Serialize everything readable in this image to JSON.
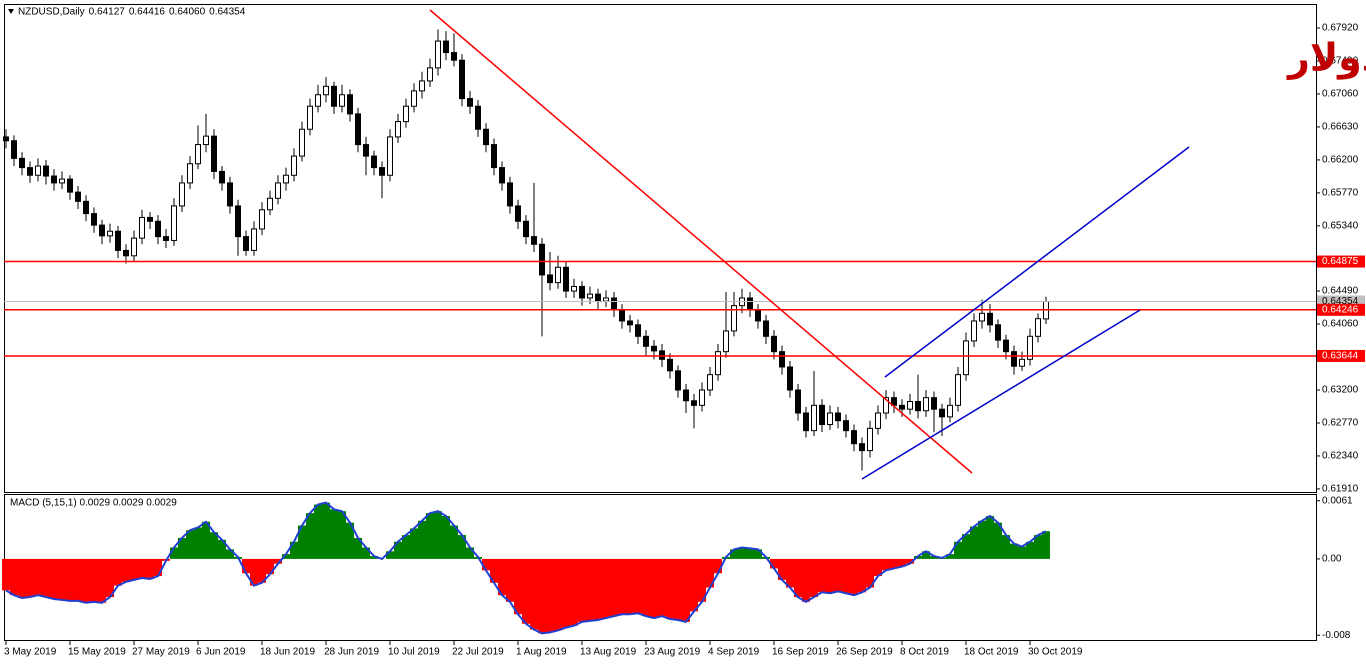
{
  "watermark": "النيوز دولار",
  "chart_data": [
    {
      "type": "candlestick",
      "title": "NZDUSD,Daily",
      "title_values": [
        "0.64127",
        "0.64416",
        "0.64060",
        "0.64354"
      ],
      "up_color": "#ffffff",
      "down_color": "#000000",
      "outline_color": "#000000",
      "ylim": [
        0.6187,
        0.6822
      ],
      "yticks": [
        {
          "value": 0.6792,
          "label": "0.67920"
        },
        {
          "value": 0.6749,
          "label": "0.67490"
        },
        {
          "value": 0.6706,
          "label": "0.67060"
        },
        {
          "value": 0.6663,
          "label": "0.66630"
        },
        {
          "value": 0.662,
          "label": "0.66200"
        },
        {
          "value": 0.6577,
          "label": "0.65770"
        },
        {
          "value": 0.6534,
          "label": "0.65340"
        },
        {
          "value": 0.6449,
          "label": "0.64490"
        },
        {
          "value": 0.6406,
          "label": "0.64060"
        },
        {
          "value": 0.632,
          "label": "0.63200"
        },
        {
          "value": 0.6277,
          "label": "0.62770"
        },
        {
          "value": 0.6234,
          "label": "0.62340"
        },
        {
          "value": 0.6191,
          "label": "0.61910"
        }
      ],
      "levels": [
        0.64875,
        0.64246,
        0.63644
      ],
      "level_color": "#ff0000",
      "current_price": 0.64354,
      "current_color": "#c0c0c0",
      "x_labels": [
        "3 May 2019",
        "15 May 2019",
        "27 May 2019",
        "6 Jun 2019",
        "18 Jun 2019",
        "28 Jun 2019",
        "10 Jul 2019",
        "22 Jul 2019",
        "1 Aug 2019",
        "13 Aug 2019",
        "23 Aug 2019",
        "4 Sep 2019",
        "16 Sep 2019",
        "26 Sep 2019",
        "8 Oct 2019",
        "18 Oct 2019",
        "30 Oct 2019"
      ],
      "candles": [
        [
          0.665,
          0.666,
          0.6635,
          0.6645
        ],
        [
          0.6645,
          0.6652,
          0.6612,
          0.6622
        ],
        [
          0.6622,
          0.663,
          0.66,
          0.661
        ],
        [
          0.661,
          0.6618,
          0.659,
          0.66
        ],
        [
          0.66,
          0.6622,
          0.6592,
          0.6612
        ],
        [
          0.6612,
          0.662,
          0.6588,
          0.6599
        ],
        [
          0.6599,
          0.6608,
          0.658,
          0.659
        ],
        [
          0.659,
          0.6605,
          0.6582,
          0.6595
        ],
        [
          0.6595,
          0.66,
          0.6568,
          0.6578
        ],
        [
          0.6578,
          0.6586,
          0.6556,
          0.6566
        ],
        [
          0.6566,
          0.6574,
          0.654,
          0.655
        ],
        [
          0.655,
          0.6558,
          0.6525,
          0.6535
        ],
        [
          0.6535,
          0.6542,
          0.651,
          0.6521
        ],
        [
          0.6521,
          0.6537,
          0.6512,
          0.6527
        ],
        [
          0.6527,
          0.6534,
          0.6492,
          0.6502
        ],
        [
          0.6502,
          0.651,
          0.6485,
          0.6495
        ],
        [
          0.6495,
          0.6528,
          0.6488,
          0.6518
        ],
        [
          0.6518,
          0.6555,
          0.651,
          0.6545
        ],
        [
          0.6545,
          0.6552,
          0.653,
          0.654
        ],
        [
          0.654,
          0.6548,
          0.651,
          0.652
        ],
        [
          0.652,
          0.653,
          0.6505,
          0.6515
        ],
        [
          0.6515,
          0.657,
          0.6508,
          0.656
        ],
        [
          0.656,
          0.66,
          0.6552,
          0.659
        ],
        [
          0.659,
          0.6625,
          0.6582,
          0.6615
        ],
        [
          0.6615,
          0.6665,
          0.6608,
          0.664
        ],
        [
          0.664,
          0.668,
          0.663,
          0.6651
        ],
        [
          0.6651,
          0.666,
          0.6595,
          0.6605
        ],
        [
          0.6605,
          0.6612,
          0.658,
          0.659
        ],
        [
          0.659,
          0.6598,
          0.655,
          0.656
        ],
        [
          0.656,
          0.6568,
          0.6495,
          0.652
        ],
        [
          0.652,
          0.6528,
          0.6495,
          0.6502
        ],
        [
          0.6502,
          0.654,
          0.6495,
          0.653
        ],
        [
          0.653,
          0.6565,
          0.6522,
          0.6555
        ],
        [
          0.6555,
          0.658,
          0.6548,
          0.657
        ],
        [
          0.657,
          0.66,
          0.6562,
          0.659
        ],
        [
          0.659,
          0.661,
          0.658,
          0.66
        ],
        [
          0.66,
          0.6635,
          0.6592,
          0.6625
        ],
        [
          0.6625,
          0.667,
          0.6618,
          0.666
        ],
        [
          0.666,
          0.67,
          0.6652,
          0.669
        ],
        [
          0.669,
          0.6718,
          0.6682,
          0.6705
        ],
        [
          0.6705,
          0.6728,
          0.6695,
          0.6716
        ],
        [
          0.6716,
          0.6722,
          0.668,
          0.669
        ],
        [
          0.669,
          0.6718,
          0.6682,
          0.6705
        ],
        [
          0.6705,
          0.6712,
          0.667,
          0.668
        ],
        [
          0.668,
          0.6688,
          0.663,
          0.664
        ],
        [
          0.664,
          0.665,
          0.66,
          0.6625
        ],
        [
          0.6625,
          0.6632,
          0.66,
          0.661
        ],
        [
          0.661,
          0.6618,
          0.657,
          0.66
        ],
        [
          0.66,
          0.666,
          0.6592,
          0.665
        ],
        [
          0.665,
          0.668,
          0.6642,
          0.667
        ],
        [
          0.667,
          0.67,
          0.6662,
          0.669
        ],
        [
          0.669,
          0.672,
          0.6682,
          0.671
        ],
        [
          0.671,
          0.6735,
          0.67,
          0.6723
        ],
        [
          0.6723,
          0.6752,
          0.6715,
          0.674
        ],
        [
          0.674,
          0.679,
          0.673,
          0.6775
        ],
        [
          0.6775,
          0.6788,
          0.675,
          0.676
        ],
        [
          0.676,
          0.6785,
          0.6742,
          0.675
        ],
        [
          0.675,
          0.6758,
          0.669,
          0.67
        ],
        [
          0.67,
          0.671,
          0.668,
          0.669
        ],
        [
          0.669,
          0.6698,
          0.665,
          0.666
        ],
        [
          0.666,
          0.6668,
          0.663,
          0.664
        ],
        [
          0.664,
          0.6648,
          0.66,
          0.661
        ],
        [
          0.661,
          0.6618,
          0.658,
          0.659
        ],
        [
          0.659,
          0.6598,
          0.655,
          0.656
        ],
        [
          0.656,
          0.6568,
          0.653,
          0.654
        ],
        [
          0.654,
          0.6548,
          0.651,
          0.652
        ],
        [
          0.652,
          0.659,
          0.65,
          0.651
        ],
        [
          0.651,
          0.6518,
          0.639,
          0.647
        ],
        [
          0.647,
          0.65,
          0.645,
          0.646
        ],
        [
          0.646,
          0.6495,
          0.6452,
          0.648
        ],
        [
          0.648,
          0.6488,
          0.644,
          0.6449
        ],
        [
          0.6449,
          0.6465,
          0.644,
          0.6455
        ],
        [
          0.6455,
          0.6462,
          0.643,
          0.644
        ],
        [
          0.644,
          0.6455,
          0.6432,
          0.6445
        ],
        [
          0.6445,
          0.6452,
          0.6425,
          0.6436
        ],
        [
          0.6436,
          0.645,
          0.6428,
          0.644
        ],
        [
          0.644,
          0.6448,
          0.6415,
          0.6425
        ],
        [
          0.6425,
          0.6432,
          0.64,
          0.641
        ],
        [
          0.641,
          0.6418,
          0.6395,
          0.6405
        ],
        [
          0.6405,
          0.6412,
          0.638,
          0.639
        ],
        [
          0.639,
          0.6398,
          0.6365,
          0.6377
        ],
        [
          0.6377,
          0.6385,
          0.636,
          0.6371
        ],
        [
          0.6371,
          0.638,
          0.635,
          0.636
        ],
        [
          0.636,
          0.6368,
          0.6335,
          0.6345
        ],
        [
          0.6345,
          0.6352,
          0.631,
          0.632
        ],
        [
          0.632,
          0.6328,
          0.629,
          0.6306
        ],
        [
          0.6306,
          0.6315,
          0.627,
          0.63
        ],
        [
          0.63,
          0.633,
          0.6292,
          0.632
        ],
        [
          0.632,
          0.635,
          0.6312,
          0.634
        ],
        [
          0.634,
          0.638,
          0.6332,
          0.637
        ],
        [
          0.637,
          0.6448,
          0.6362,
          0.6397
        ],
        [
          0.6397,
          0.6448,
          0.639,
          0.643
        ],
        [
          0.643,
          0.6452,
          0.642,
          0.644
        ],
        [
          0.644,
          0.6448,
          0.6415,
          0.6425
        ],
        [
          0.6425,
          0.6432,
          0.64,
          0.641
        ],
        [
          0.641,
          0.6418,
          0.638,
          0.639
        ],
        [
          0.639,
          0.6398,
          0.636,
          0.637
        ],
        [
          0.637,
          0.6378,
          0.634,
          0.635
        ],
        [
          0.635,
          0.6358,
          0.631,
          0.632
        ],
        [
          0.632,
          0.6328,
          0.628,
          0.629
        ],
        [
          0.629,
          0.6298,
          0.6258,
          0.6267
        ],
        [
          0.6267,
          0.6345,
          0.626,
          0.63
        ],
        [
          0.63,
          0.6308,
          0.6265,
          0.6275
        ],
        [
          0.6275,
          0.63,
          0.6268,
          0.629
        ],
        [
          0.629,
          0.6298,
          0.627,
          0.628
        ],
        [
          0.628,
          0.6288,
          0.6258,
          0.6267
        ],
        [
          0.6267,
          0.6275,
          0.624,
          0.625
        ],
        [
          0.625,
          0.6258,
          0.6215,
          0.6241
        ],
        [
          0.6241,
          0.628,
          0.6232,
          0.627
        ],
        [
          0.627,
          0.63,
          0.6262,
          0.629
        ],
        [
          0.629,
          0.632,
          0.6282,
          0.631
        ],
        [
          0.631,
          0.6318,
          0.629,
          0.63
        ],
        [
          0.63,
          0.6308,
          0.6285,
          0.6295
        ],
        [
          0.6295,
          0.6315,
          0.6288,
          0.6305
        ],
        [
          0.6305,
          0.634,
          0.6283,
          0.6293
        ],
        [
          0.6293,
          0.632,
          0.6285,
          0.631
        ],
        [
          0.631,
          0.6318,
          0.6265,
          0.6295
        ],
        [
          0.6295,
          0.6302,
          0.626,
          0.6285
        ],
        [
          0.6285,
          0.631,
          0.6278,
          0.63
        ],
        [
          0.63,
          0.635,
          0.6292,
          0.634
        ],
        [
          0.634,
          0.6395,
          0.6332,
          0.6384
        ],
        [
          0.6384,
          0.642,
          0.6376,
          0.641
        ],
        [
          0.641,
          0.6438,
          0.64,
          0.642
        ],
        [
          0.642,
          0.6432,
          0.6395,
          0.6405
        ],
        [
          0.6405,
          0.6412,
          0.6375,
          0.6385
        ],
        [
          0.6385,
          0.6392,
          0.636,
          0.637
        ],
        [
          0.637,
          0.6378,
          0.634,
          0.6351
        ],
        [
          0.6351,
          0.637,
          0.6345,
          0.636
        ],
        [
          0.636,
          0.64,
          0.6352,
          0.639
        ],
        [
          0.639,
          0.642,
          0.6382,
          0.6413
        ],
        [
          0.64127,
          0.64416,
          0.6406,
          0.64354
        ]
      ]
    },
    {
      "type": "histogram",
      "title": "MACD (5,15,1) 0.0029 0.0029 0.0029",
      "positive_color": "#008000",
      "negative_color": "#ff0000",
      "line_color": "#1f3fd0",
      "ylim": [
        -0.0085,
        0.0067
      ],
      "yticks": [
        0.0061,
        {
          "value": 0,
          "label": "0.00"
        },
        -0.008
      ],
      "values": [
        -0.0033,
        -0.0038,
        -0.0041,
        -0.004,
        -0.0038,
        -0.004,
        -0.0042,
        -0.0043,
        -0.0044,
        -0.0044,
        -0.0046,
        -0.0045,
        -0.0046,
        -0.004,
        -0.0028,
        -0.0024,
        -0.0022,
        -0.002,
        -0.0021,
        -0.0018,
        -0.0002,
        0.0012,
        0.0022,
        0.003,
        0.0033,
        0.0039,
        0.0028,
        0.002,
        0.001,
        0.0002,
        -0.0015,
        -0.0028,
        -0.0025,
        -0.0016,
        -0.0005,
        0.0005,
        0.0018,
        0.0035,
        0.0048,
        0.0057,
        0.0059,
        0.0052,
        0.005,
        0.0038,
        0.0022,
        0.0012,
        0.0003,
        0.0,
        0.0008,
        0.0018,
        0.0025,
        0.0032,
        0.004,
        0.0048,
        0.005,
        0.0045,
        0.0035,
        0.0025,
        0.0012,
        0.0002,
        -0.0012,
        -0.0025,
        -0.0038,
        -0.0045,
        -0.0058,
        -0.0068,
        -0.0074,
        -0.0078,
        -0.0077,
        -0.0075,
        -0.0072,
        -0.007,
        -0.0066,
        -0.0065,
        -0.0064,
        -0.0062,
        -0.006,
        -0.0058,
        -0.0058,
        -0.0057,
        -0.006,
        -0.0062,
        -0.006,
        -0.0063,
        -0.0064,
        -0.0066,
        -0.0055,
        -0.0045,
        -0.003,
        -0.0015,
        0.0002,
        0.001,
        0.0012,
        0.0011,
        0.001,
        0.0002,
        -0.001,
        -0.0022,
        -0.003,
        -0.004,
        -0.0045,
        -0.004,
        -0.0035,
        -0.0036,
        -0.0034,
        -0.0036,
        -0.0038,
        -0.0035,
        -0.003,
        -0.0018,
        -0.0012,
        -0.001,
        -0.0008,
        -0.0005,
        0.0003,
        0.0008,
        0.0003,
        0.0001,
        0.0005,
        0.0018,
        0.0026,
        0.0034,
        0.004,
        0.0045,
        0.0038,
        0.0025,
        0.0016,
        0.0013,
        0.0018,
        0.0025,
        0.0029
      ]
    }
  ]
}
